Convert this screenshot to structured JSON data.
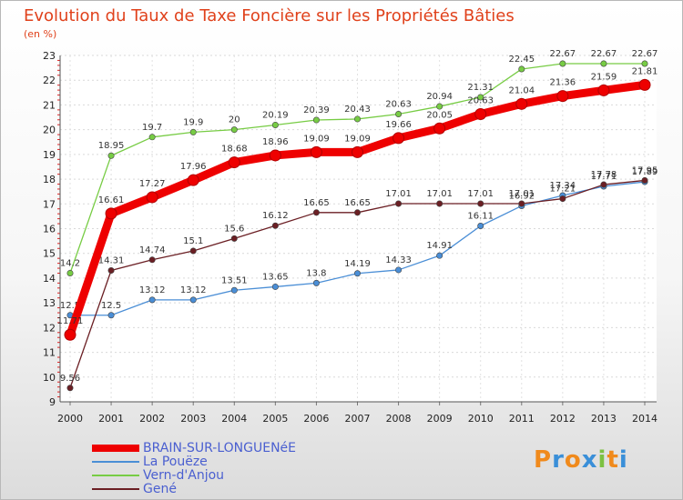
{
  "chart_data": {
    "type": "line",
    "title": "Evolution du Taux de Taxe Foncière sur les Propriétés Bâties",
    "subtitle": "(en %)",
    "x": [
      "2000",
      "2001",
      "2002",
      "2003",
      "2004",
      "2005",
      "2006",
      "2007",
      "2008",
      "2009",
      "2010",
      "2011",
      "2012",
      "2013",
      "2014"
    ],
    "ylim": [
      9,
      23
    ],
    "yticks": [
      9,
      10,
      11,
      12,
      13,
      14,
      15,
      16,
      17,
      18,
      19,
      20,
      21,
      22,
      23
    ],
    "series": [
      {
        "name": "BRAIN-SUR-LONGUENéE",
        "color": "#ee0000",
        "values": [
          11.71,
          16.61,
          17.27,
          17.96,
          18.68,
          18.96,
          19.09,
          19.09,
          19.66,
          20.05,
          20.63,
          21.04,
          21.36,
          21.59,
          21.81
        ],
        "labels": [
          "11.71",
          "16.61",
          "17.27",
          "17.96",
          "18.68",
          "18.96",
          "19.09",
          "19.09",
          "19.66",
          "20.05",
          "20.63",
          "21.04",
          "21.36",
          "21.59",
          "21.81"
        ]
      },
      {
        "name": "La Pouëze",
        "color": "#4a8ed6",
        "values": [
          12.5,
          12.5,
          13.12,
          13.12,
          13.51,
          13.65,
          13.8,
          14.19,
          14.33,
          14.91,
          16.11,
          16.92,
          17.34,
          17.71,
          17.89
        ],
        "labels": [
          "12.5",
          "12.5",
          "13.12",
          "13.12",
          "13.51",
          "13.65",
          "13.8",
          "14.19",
          "14.33",
          "14.91",
          "16.11",
          "16.92",
          "17.34",
          "17.71",
          "17.89"
        ]
      },
      {
        "name": "Vern-d'Anjou",
        "color": "#77cc44",
        "values": [
          14.2,
          18.95,
          19.7,
          19.9,
          20,
          20.19,
          20.39,
          20.43,
          20.63,
          20.94,
          21.31,
          22.45,
          22.67,
          22.67,
          22.67
        ],
        "labels": [
          "14.2",
          "18.95",
          "19.7",
          "19.9",
          "20",
          "20.19",
          "20.39",
          "20.43",
          "20.63",
          "20.94",
          "21.31",
          "22.45",
          "22.67",
          "22.67",
          "22.67"
        ]
      },
      {
        "name": "Gené",
        "color": "#6b1f24",
        "values": [
          9.56,
          14.31,
          14.74,
          15.1,
          15.6,
          16.12,
          16.65,
          16.65,
          17.01,
          17.01,
          17.01,
          17.01,
          17.21,
          17.78,
          17.95
        ],
        "labels": [
          "9.56",
          "14.31",
          "14.74",
          "15.1",
          "15.6",
          "16.12",
          "16.65",
          "16.65",
          "17.01",
          "17.01",
          "17.01",
          "17.01",
          "17.21",
          "17.78",
          "17.95"
        ]
      }
    ]
  },
  "brand": {
    "text": "Proxiti",
    "letters": [
      "P",
      "r",
      "o",
      "x",
      "i",
      "t",
      "i"
    ],
    "colors": [
      "#f08a1c",
      "#3a8fd8",
      "#f08a1c",
      "#3a8fd8",
      "#7cc142",
      "#f08a1c",
      "#3a8fd8"
    ]
  }
}
